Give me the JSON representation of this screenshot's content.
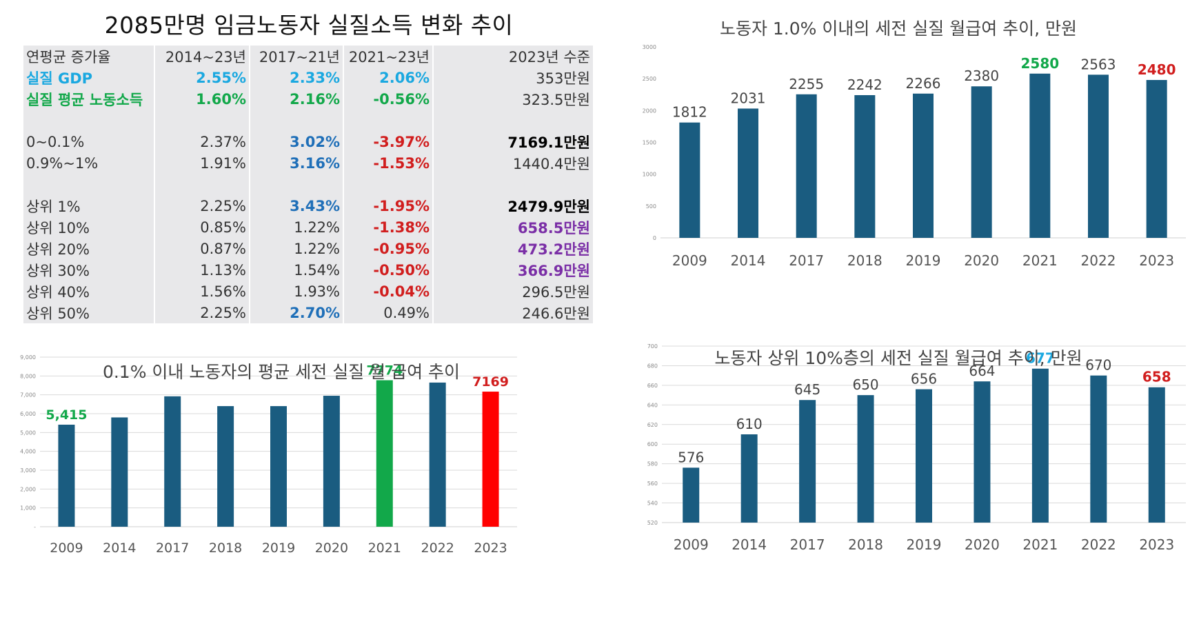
{
  "table": {
    "title": "2085만명 임금노동자 실질소득 변화 추이",
    "headers": [
      "연평균 증가율",
      "2014~23년",
      "2017~21년",
      "2021~23년",
      "2023년 수준"
    ],
    "rows": [
      {
        "cells": [
          "실질 GDP",
          "2.55%",
          "2.33%",
          "2.06%",
          "353만원"
        ],
        "colors": [
          "cyan",
          "cyan",
          "cyan",
          "cyan",
          ""
        ]
      },
      {
        "cells": [
          "실질 평균 노동소득",
          "1.60%",
          "2.16%",
          "-0.56%",
          "323.5만원"
        ],
        "colors": [
          "green",
          "green",
          "green",
          "green",
          ""
        ]
      },
      {
        "cells": [
          "",
          "",
          "",
          "",
          ""
        ],
        "colors": [
          "",
          "",
          "",
          "",
          ""
        ],
        "gap": true
      },
      {
        "cells": [
          "0~0.1%",
          "2.37%",
          "3.02%",
          "-3.97%",
          "7169.1만원"
        ],
        "colors": [
          "",
          "",
          "blue",
          "red",
          "black"
        ]
      },
      {
        "cells": [
          "0.9%~1%",
          "1.91%",
          "3.16%",
          "-1.53%",
          "1440.4만원"
        ],
        "colors": [
          "",
          "",
          "blue",
          "red",
          ""
        ]
      },
      {
        "cells": [
          "",
          "",
          "",
          "",
          ""
        ],
        "colors": [
          "",
          "",
          "",
          "",
          ""
        ],
        "gap": true
      },
      {
        "cells": [
          "상위 1%",
          "2.25%",
          "3.43%",
          "-1.95%",
          "2479.9만원"
        ],
        "colors": [
          "",
          "",
          "blue",
          "red",
          "black"
        ]
      },
      {
        "cells": [
          "상위 10%",
          "0.85%",
          "1.22%",
          "-1.38%",
          "658.5만원"
        ],
        "colors": [
          "",
          "",
          "",
          "red",
          "purple"
        ]
      },
      {
        "cells": [
          "상위 20%",
          "0.87%",
          "1.22%",
          "-0.95%",
          "473.2만원"
        ],
        "colors": [
          "",
          "",
          "",
          "red",
          "purple"
        ]
      },
      {
        "cells": [
          "상위 30%",
          "1.13%",
          "1.54%",
          "-0.50%",
          "366.9만원"
        ],
        "colors": [
          "",
          "",
          "",
          "red",
          "purple"
        ]
      },
      {
        "cells": [
          "상위 40%",
          "1.56%",
          "1.93%",
          "-0.04%",
          "296.5만원"
        ],
        "colors": [
          "",
          "",
          "",
          "red",
          ""
        ]
      },
      {
        "cells": [
          "상위 50%",
          "2.25%",
          "2.70%",
          "0.49%",
          "246.6만원"
        ],
        "colors": [
          "",
          "",
          "blue",
          "",
          ""
        ]
      }
    ]
  },
  "colors": {
    "bar": "#1a5c80",
    "green": "#12a84a",
    "red": "#d11e1e",
    "red_bar": "#ff0000",
    "cyan": "#1aa8e0",
    "grid": "#d9d9d9",
    "axis_text": "#555555"
  },
  "chart_data": [
    {
      "id": "chart-top1",
      "type": "bar",
      "title": "노동자 1.0% 이내의 세전 실질 월급여 추이, 만원",
      "categories": [
        "2009",
        "2014",
        "2017",
        "2018",
        "2019",
        "2020",
        "2021",
        "2022",
        "2023"
      ],
      "values": [
        1812,
        2031,
        2255,
        2242,
        2266,
        2380,
        2580,
        2563,
        2480
      ],
      "data_labels": [
        "1812",
        "2031",
        "2255",
        "2242",
        "2266",
        "2380",
        "2580",
        "2563",
        "2480"
      ],
      "label_colors": [
        "",
        "",
        "",
        "",
        "",
        "",
        "green",
        "",
        "red"
      ],
      "bar_colors": [
        "",
        "",
        "",
        "",
        "",
        "",
        "",
        "",
        ""
      ],
      "ylim": [
        0,
        3000
      ],
      "yticks": [
        0,
        500,
        1000,
        1500,
        2000,
        2500,
        3000
      ],
      "ytick_labels": [
        "0",
        "500",
        "1000",
        "1500",
        "2000",
        "2500",
        "3000"
      ],
      "grid": false,
      "xlabel": "",
      "ylabel": ""
    },
    {
      "id": "chart-top01",
      "type": "bar",
      "title": "0.1% 이내 노동자의 평균 세전 실질 월 급여 추이",
      "categories": [
        "2009",
        "2014",
        "2017",
        "2018",
        "2019",
        "2020",
        "2021",
        "2022",
        "2023"
      ],
      "values": [
        5415,
        5800,
        6920,
        6400,
        6400,
        6950,
        7774,
        7650,
        7169
      ],
      "data_labels": [
        "5,415",
        "",
        "",
        "",
        "",
        "",
        "7774",
        "",
        "7169"
      ],
      "label_colors": [
        "green",
        "",
        "",
        "",
        "",
        "",
        "green",
        "",
        "red"
      ],
      "bar_colors": [
        "",
        "",
        "",
        "",
        "",
        "",
        "green",
        "",
        "red_bar"
      ],
      "ylim": [
        0,
        9000
      ],
      "yticks": [
        0,
        1000,
        2000,
        3000,
        4000,
        5000,
        6000,
        7000,
        8000,
        9000
      ],
      "ytick_labels": [
        "-",
        "1,000",
        "2,000",
        "3,000",
        "4,000",
        "5,000",
        "6,000",
        "7,000",
        "8,000",
        "9,000"
      ],
      "grid": true,
      "xlabel": "",
      "ylabel": ""
    },
    {
      "id": "chart-top10",
      "type": "bar",
      "title": "노동자 상위 10%층의 세전 실질 월급여 추이, 만원",
      "categories": [
        "2009",
        "2014",
        "2017",
        "2018",
        "2019",
        "2020",
        "2021",
        "2022",
        "2023"
      ],
      "values": [
        576,
        610,
        645,
        650,
        656,
        664,
        677,
        670,
        658
      ],
      "data_labels": [
        "576",
        "610",
        "645",
        "650",
        "656",
        "664",
        "677",
        "670",
        "658"
      ],
      "label_colors": [
        "",
        "",
        "",
        "",
        "",
        "",
        "cyan",
        "",
        "red"
      ],
      "bar_colors": [
        "",
        "",
        "",
        "",
        "",
        "",
        "",
        "",
        ""
      ],
      "ylim": [
        520,
        700
      ],
      "yticks": [
        520,
        540,
        560,
        580,
        600,
        620,
        640,
        660,
        680,
        700
      ],
      "ytick_labels": [
        "520",
        "540",
        "560",
        "580",
        "600",
        "620",
        "640",
        "660",
        "680",
        "700"
      ],
      "grid": true,
      "xlabel": "",
      "ylabel": ""
    }
  ]
}
